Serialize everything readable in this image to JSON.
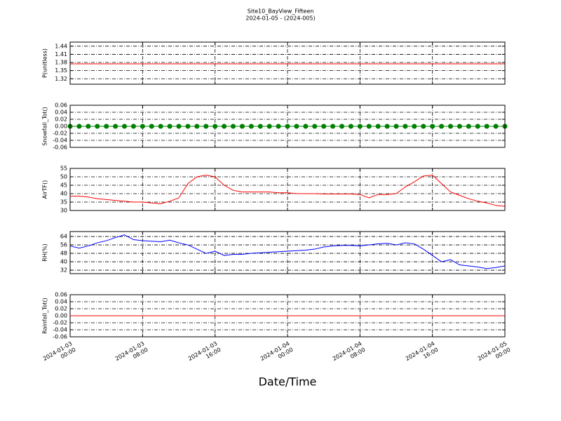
{
  "title": "Site10_BayView_Fifteen",
  "subtitle": "2024-01-05 - (2024-005)",
  "xlabel": "Date/Time",
  "chart_data": [
    {
      "type": "line",
      "ylabel": "P(unitless)",
      "color": "#ff0000",
      "grid": true,
      "xlim": [
        "2024-01-03 00:00",
        "2024-01-05 00:00"
      ],
      "xticks": [
        "2024-01-03 00:00",
        "2024-01-03 08:00",
        "2024-01-03 16:00",
        "2024-01-04 00:00",
        "2024-01-04 08:00",
        "2024-01-04 16:00",
        "2024-01-05 00:00"
      ],
      "ylim": [
        1.3,
        1.455
      ],
      "yticks": [
        1.32,
        1.35,
        1.38,
        1.41,
        1.44
      ],
      "x": [
        "2024-01-03 00:00",
        "2024-01-03 08:00",
        "2024-01-03 16:00",
        "2024-01-04 00:00",
        "2024-01-04 08:00",
        "2024-01-04 16:00",
        "2024-01-05 00:00"
      ],
      "values": [
        1.375,
        1.375,
        1.375,
        1.375,
        1.375,
        1.375,
        1.375
      ]
    },
    {
      "type": "line",
      "ylabel": "Snowfall_Tot()",
      "color": "#008000",
      "marker": "o",
      "grid": true,
      "xlim": [
        "2024-01-03 00:00",
        "2024-01-05 00:00"
      ],
      "xticks": [
        "2024-01-03 00:00",
        "2024-01-03 08:00",
        "2024-01-03 16:00",
        "2024-01-04 00:00",
        "2024-01-04 08:00",
        "2024-01-04 16:00",
        "2024-01-05 00:00"
      ],
      "ylim": [
        -0.06,
        0.06
      ],
      "yticks": [
        -0.06,
        -0.04,
        -0.02,
        {
          "value": 0,
          "label": "0.00"
        },
        0.02,
        0.04,
        0.06
      ],
      "x": [
        "2024-01-03 00:00",
        "2024-01-03 01:00",
        "2024-01-03 02:00",
        "2024-01-03 03:00",
        "2024-01-03 04:00",
        "2024-01-03 05:00",
        "2024-01-03 06:00",
        "2024-01-03 07:00",
        "2024-01-03 08:00",
        "2024-01-03 09:00",
        "2024-01-03 10:00",
        "2024-01-03 11:00",
        "2024-01-03 12:00",
        "2024-01-03 13:00",
        "2024-01-03 14:00",
        "2024-01-03 15:00",
        "2024-01-03 16:00",
        "2024-01-03 17:00",
        "2024-01-03 18:00",
        "2024-01-03 19:00",
        "2024-01-03 20:00",
        "2024-01-03 21:00",
        "2024-01-03 22:00",
        "2024-01-03 23:00",
        "2024-01-04 00:00",
        "2024-01-04 01:00",
        "2024-01-04 02:00",
        "2024-01-04 03:00",
        "2024-01-04 04:00",
        "2024-01-04 05:00",
        "2024-01-04 06:00",
        "2024-01-04 07:00",
        "2024-01-04 08:00",
        "2024-01-04 09:00",
        "2024-01-04 10:00",
        "2024-01-04 11:00",
        "2024-01-04 12:00",
        "2024-01-04 13:00",
        "2024-01-04 14:00",
        "2024-01-04 15:00",
        "2024-01-04 16:00",
        "2024-01-04 17:00",
        "2024-01-04 18:00",
        "2024-01-04 19:00",
        "2024-01-04 20:00",
        "2024-01-04 21:00",
        "2024-01-04 22:00",
        "2024-01-04 23:00",
        "2024-01-05 00:00"
      ],
      "values": [
        0,
        0,
        0,
        0,
        0,
        0,
        0,
        0,
        0,
        0,
        0,
        0,
        0,
        0,
        0,
        0,
        0,
        0,
        0,
        0,
        0,
        0,
        0,
        0,
        0,
        0,
        0,
        0,
        0,
        0,
        0,
        0,
        0,
        0,
        0,
        0,
        0,
        0,
        0,
        0,
        0,
        0,
        0,
        0,
        0,
        0,
        0,
        0,
        0
      ]
    },
    {
      "type": "line",
      "ylabel": "AirTF()",
      "color": "#ff0000",
      "grid": true,
      "xlim": [
        "2024-01-03 00:00",
        "2024-01-05 00:00"
      ],
      "xticks": [
        "2024-01-03 00:00",
        "2024-01-03 08:00",
        "2024-01-03 16:00",
        "2024-01-04 00:00",
        "2024-01-04 08:00",
        "2024-01-04 16:00",
        "2024-01-05 00:00"
      ],
      "ylim": [
        30,
        55
      ],
      "yticks": [
        30,
        35,
        40,
        45,
        50,
        55
      ],
      "x": [
        "2024-01-03 00:00",
        "2024-01-03 01:00",
        "2024-01-03 02:00",
        "2024-01-03 03:00",
        "2024-01-03 04:00",
        "2024-01-03 05:00",
        "2024-01-03 06:00",
        "2024-01-03 07:00",
        "2024-01-03 08:00",
        "2024-01-03 09:00",
        "2024-01-03 10:00",
        "2024-01-03 11:00",
        "2024-01-03 12:00",
        "2024-01-03 13:00",
        "2024-01-03 14:00",
        "2024-01-03 15:00",
        "2024-01-03 16:00",
        "2024-01-03 17:00",
        "2024-01-03 18:00",
        "2024-01-03 19:00",
        "2024-01-03 20:00",
        "2024-01-03 21:00",
        "2024-01-03 22:00",
        "2024-01-03 23:00",
        "2024-01-04 00:00",
        "2024-01-04 01:00",
        "2024-01-04 02:00",
        "2024-01-04 03:00",
        "2024-01-04 04:00",
        "2024-01-04 05:00",
        "2024-01-04 06:00",
        "2024-01-04 07:00",
        "2024-01-04 08:00",
        "2024-01-04 09:00",
        "2024-01-04 10:00",
        "2024-01-04 11:00",
        "2024-01-04 12:00",
        "2024-01-04 13:00",
        "2024-01-04 14:00",
        "2024-01-04 15:00",
        "2024-01-04 16:00",
        "2024-01-04 17:00",
        "2024-01-04 18:00",
        "2024-01-04 19:00",
        "2024-01-04 20:00",
        "2024-01-04 21:00",
        "2024-01-04 22:00",
        "2024-01-04 23:00",
        "2024-01-05 00:00"
      ],
      "values": [
        38.5,
        38.5,
        38,
        37,
        36.5,
        36,
        35.5,
        35,
        35,
        34.5,
        34,
        35.5,
        37.5,
        46,
        50,
        51,
        50,
        45,
        42,
        41,
        41,
        41,
        41,
        40.5,
        40.5,
        40,
        40,
        40,
        39.8,
        39.8,
        39.8,
        39.8,
        39.5,
        37.5,
        39.5,
        39.5,
        40,
        44,
        47,
        50.5,
        51,
        46,
        41,
        39,
        37,
        35.5,
        34.5,
        33,
        32.5
      ]
    },
    {
      "type": "line",
      "ylabel": "RH(%)",
      "color": "#0000ff",
      "grid": true,
      "xlim": [
        "2024-01-03 00:00",
        "2024-01-05 00:00"
      ],
      "xticks": [
        "2024-01-03 00:00",
        "2024-01-03 08:00",
        "2024-01-03 16:00",
        "2024-01-04 00:00",
        "2024-01-04 08:00",
        "2024-01-04 16:00",
        "2024-01-05 00:00"
      ],
      "ylim": [
        28.7,
        68.7
      ],
      "yticks": [
        32,
        40,
        48,
        56,
        64
      ],
      "x": [
        "2024-01-03 00:00",
        "2024-01-03 01:00",
        "2024-01-03 02:00",
        "2024-01-03 03:00",
        "2024-01-03 04:00",
        "2024-01-03 05:00",
        "2024-01-03 06:00",
        "2024-01-03 07:00",
        "2024-01-03 08:00",
        "2024-01-03 09:00",
        "2024-01-03 10:00",
        "2024-01-03 11:00",
        "2024-01-03 12:00",
        "2024-01-03 13:00",
        "2024-01-03 14:00",
        "2024-01-03 15:00",
        "2024-01-03 16:00",
        "2024-01-03 17:00",
        "2024-01-03 18:00",
        "2024-01-03 19:00",
        "2024-01-03 20:00",
        "2024-01-03 21:00",
        "2024-01-03 22:00",
        "2024-01-03 23:00",
        "2024-01-04 00:00",
        "2024-01-04 01:00",
        "2024-01-04 02:00",
        "2024-01-04 03:00",
        "2024-01-04 04:00",
        "2024-01-04 05:00",
        "2024-01-04 06:00",
        "2024-01-04 07:00",
        "2024-01-04 08:00",
        "2024-01-04 09:00",
        "2024-01-04 10:00",
        "2024-01-04 11:00",
        "2024-01-04 12:00",
        "2024-01-04 13:00",
        "2024-01-04 14:00",
        "2024-01-04 15:00",
        "2024-01-04 16:00",
        "2024-01-04 17:00",
        "2024-01-04 18:00",
        "2024-01-04 19:00",
        "2024-01-04 20:00",
        "2024-01-04 21:00",
        "2024-01-04 22:00",
        "2024-01-04 23:00",
        "2024-01-05 00:00"
      ],
      "values": [
        55,
        53,
        55,
        58,
        60,
        63,
        65.5,
        61,
        60,
        59.5,
        59,
        60.5,
        58,
        56,
        52,
        48,
        50,
        46,
        47,
        47,
        48,
        48.5,
        49,
        49.5,
        50,
        50.5,
        51,
        52,
        54,
        55,
        55.5,
        55.5,
        55,
        56,
        57,
        57.5,
        56,
        58,
        57,
        52,
        46,
        40,
        42,
        37,
        36,
        35,
        33.5,
        34.5,
        36
      ]
    },
    {
      "type": "line",
      "ylabel": "Rainfall_Tot()",
      "color": "#ff0000",
      "grid": true,
      "xlim": [
        "2024-01-03 00:00",
        "2024-01-05 00:00"
      ],
      "xticks": [
        "2024-01-03 00:00",
        "2024-01-03 08:00",
        "2024-01-03 16:00",
        "2024-01-04 00:00",
        "2024-01-04 08:00",
        "2024-01-04 16:00",
        "2024-01-05 00:00"
      ],
      "ylim": [
        -0.06,
        0.06
      ],
      "yticks": [
        -0.06,
        -0.04,
        -0.02,
        {
          "value": 0,
          "label": "0.00"
        },
        0.02,
        0.04,
        0.06
      ],
      "x": [
        "2024-01-03 00:00",
        "2024-01-03 08:00",
        "2024-01-03 16:00",
        "2024-01-04 00:00",
        "2024-01-04 08:00",
        "2024-01-04 16:00",
        "2024-01-05 00:00"
      ],
      "values": [
        0,
        0,
        0,
        0,
        0,
        0,
        0
      ]
    }
  ]
}
